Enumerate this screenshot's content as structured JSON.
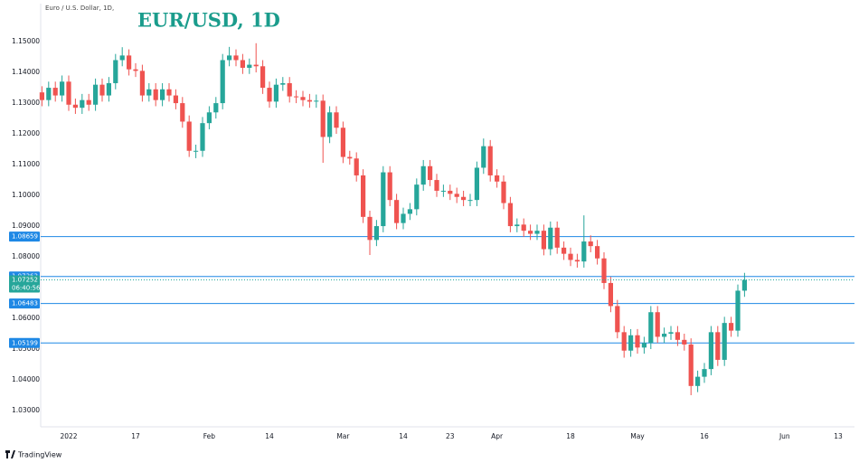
{
  "chart_data": {
    "type": "candlestick",
    "title": "EUR/USD, 1D",
    "subtitle": "Euro / U.S. Dollar, 1D,",
    "brand": "TradingView",
    "up_color": "#26a69a",
    "down_color": "#ef5350",
    "hline_color": "#1e88e5",
    "grid": false,
    "ylim": [
      1.0253,
      1.1612
    ],
    "yticks": [
      {
        "value": 1.15,
        "label": "1.15000"
      },
      {
        "value": 1.14,
        "label": "1.14000"
      },
      {
        "value": 1.13,
        "label": "1.13000"
      },
      {
        "value": 1.12,
        "label": "1.12000"
      },
      {
        "value": 1.11,
        "label": "1.11000"
      },
      {
        "value": 1.1,
        "label": "1.10000"
      },
      {
        "value": 1.09,
        "label": "1.09000"
      },
      {
        "value": 1.08,
        "label": "1.08000"
      },
      {
        "value": 1.06,
        "label": "1.06000"
      },
      {
        "value": 1.05,
        "label": "1.05000"
      },
      {
        "value": 1.04,
        "label": "1.04000"
      },
      {
        "value": 1.03,
        "label": "1.03000"
      }
    ],
    "hlines": [
      1.08659,
      1.07363,
      1.06483,
      1.05199
    ],
    "last_price": {
      "value": 1.07252,
      "countdown": "06:40:56"
    },
    "categories": [
      null,
      null,
      null,
      null,
      "2022",
      null,
      null,
      null,
      null,
      null,
      null,
      null,
      null,
      null,
      "17",
      null,
      null,
      null,
      null,
      null,
      null,
      null,
      null,
      null,
      null,
      "Feb",
      null,
      null,
      null,
      null,
      null,
      null,
      null,
      null,
      "14",
      null,
      null,
      null,
      null,
      null,
      null,
      null,
      null,
      null,
      null,
      "Mar",
      null,
      null,
      null,
      null,
      null,
      null,
      null,
      null,
      "14",
      null,
      null,
      null,
      null,
      null,
      null,
      "23",
      null,
      null,
      null,
      null,
      null,
      null,
      "Apr",
      null,
      null,
      null,
      null,
      null,
      null,
      null,
      null,
      null,
      null,
      "18",
      null,
      null,
      null,
      null,
      null,
      null,
      null,
      null,
      null,
      "May",
      null,
      null,
      null,
      null,
      null,
      null,
      null,
      null,
      null,
      "16",
      null,
      null,
      null,
      null,
      null,
      null,
      null,
      null,
      null,
      null,
      null,
      "Jun",
      null,
      null,
      null,
      null,
      null,
      null,
      null,
      "13"
    ],
    "open": [
      1.1335,
      1.131,
      1.135,
      1.1325,
      1.137,
      1.1295,
      1.1285,
      1.131,
      1.1295,
      1.136,
      1.1325,
      1.1365,
      1.144,
      1.1455,
      1.141,
      1.1405,
      1.1325,
      1.1345,
      1.131,
      1.1345,
      1.1325,
      1.13,
      1.124,
      1.1145,
      1.1145,
      1.1235,
      1.127,
      1.13,
      1.144,
      1.1455,
      1.144,
      1.1415,
      1.1425,
      1.142,
      1.135,
      1.1305,
      1.136,
      1.1365,
      1.1322,
      1.132,
      1.131,
      1.1305,
      1.1308,
      1.119,
      1.127,
      1.122,
      1.1125,
      1.112,
      1.1065,
      1.093,
      1.0855,
      1.09,
      1.1075,
      1.0985,
      1.091,
      1.094,
      1.0955,
      1.1035,
      1.1095,
      1.105,
      1.1015,
      1.1015,
      1.1005,
      1.0995,
      1.0985,
      1.0985,
      1.109,
      1.116,
      1.1065,
      1.1045,
      1.0975,
      1.09,
      1.0905,
      1.0885,
      1.0875,
      1.0885,
      1.0825,
      1.0895,
      1.083,
      1.081,
      1.079,
      1.0785,
      1.085,
      1.0835,
      1.0795,
      1.0715,
      1.064,
      1.0555,
      1.0495,
      1.0545,
      1.0505,
      1.052,
      1.062,
      1.054,
      1.055,
      1.0555,
      1.053,
      1.0515,
      1.038,
      1.041,
      1.0435,
      1.0555,
      1.0465,
      1.0585,
      1.056,
      1.069,
      null,
      null,
      null,
      null,
      null,
      null,
      null,
      null,
      null,
      null,
      null,
      null,
      null,
      null
    ],
    "high": [
      1.1355,
      1.137,
      1.137,
      1.139,
      1.139,
      1.1315,
      1.133,
      1.133,
      1.138,
      1.138,
      1.1385,
      1.146,
      1.1482,
      1.1475,
      1.143,
      1.1425,
      1.1365,
      1.1365,
      1.1365,
      1.1365,
      1.1345,
      1.132,
      1.126,
      1.1165,
      1.1255,
      1.129,
      1.132,
      1.146,
      1.1483,
      1.1475,
      1.146,
      1.1445,
      1.1495,
      1.144,
      1.137,
      1.138,
      1.1385,
      1.1385,
      1.1342,
      1.134,
      1.133,
      1.1328,
      1.1328,
      1.129,
      1.129,
      1.124,
      1.1145,
      1.114,
      1.1085,
      1.095,
      1.092,
      1.1095,
      1.1095,
      1.1005,
      1.096,
      1.0975,
      1.1055,
      1.1115,
      1.1115,
      1.107,
      1.1035,
      1.1035,
      1.1025,
      1.1015,
      1.1005,
      1.111,
      1.1185,
      1.118,
      1.1085,
      1.1065,
      1.0995,
      1.0925,
      1.0925,
      1.0905,
      1.0905,
      1.0905,
      1.0915,
      1.0915,
      1.085,
      1.083,
      1.081,
      1.0935,
      1.087,
      1.0855,
      1.0815,
      1.0735,
      1.066,
      1.0575,
      1.0565,
      1.0565,
      1.054,
      1.064,
      1.064,
      1.057,
      1.0575,
      1.0575,
      1.055,
      1.0535,
      1.043,
      1.0455,
      1.0575,
      1.0575,
      1.0605,
      1.0605,
      1.071,
      1.0748,
      null,
      null,
      null,
      null,
      null,
      null,
      null,
      null,
      null,
      null,
      null,
      null,
      null,
      null
    ],
    "low": [
      1.129,
      1.129,
      1.1305,
      1.1305,
      1.1275,
      1.1265,
      1.1265,
      1.1275,
      1.1275,
      1.1305,
      1.1305,
      1.1345,
      1.142,
      1.139,
      1.1385,
      1.1305,
      1.1305,
      1.129,
      1.129,
      1.1305,
      1.128,
      1.122,
      1.1125,
      1.1121,
      1.1125,
      1.1215,
      1.125,
      1.128,
      1.142,
      1.142,
      1.1395,
      1.1395,
      1.14,
      1.133,
      1.1285,
      1.1285,
      1.134,
      1.1302,
      1.13,
      1.129,
      1.1285,
      1.1285,
      1.1106,
      1.117,
      1.12,
      1.1105,
      1.11,
      1.1045,
      1.091,
      1.0806,
      1.0835,
      1.088,
      1.0965,
      1.089,
      1.089,
      1.092,
      1.0935,
      1.1015,
      1.103,
      1.0995,
      1.0995,
      1.0985,
      1.0975,
      1.0965,
      1.0965,
      1.0965,
      1.107,
      1.1045,
      1.1025,
      1.0955,
      1.088,
      1.088,
      1.0865,
      1.0855,
      1.0855,
      1.0805,
      1.0805,
      1.081,
      1.079,
      1.077,
      1.0765,
      1.0765,
      1.0815,
      1.0775,
      1.0695,
      1.062,
      1.0535,
      1.0472,
      1.0475,
      1.0485,
      1.0485,
      1.05,
      1.052,
      1.052,
      1.053,
      1.051,
      1.0495,
      1.035,
      1.036,
      1.039,
      1.0415,
      1.0445,
      1.0445,
      1.054,
      1.054,
      1.067,
      null,
      null,
      null,
      null,
      null,
      null,
      null,
      null,
      null,
      null,
      null,
      null,
      null,
      null
    ],
    "close": [
      1.131,
      1.135,
      1.1325,
      1.137,
      1.1295,
      1.1285,
      1.131,
      1.1295,
      1.136,
      1.1325,
      1.1365,
      1.144,
      1.1455,
      1.141,
      1.1405,
      1.1325,
      1.1345,
      1.131,
      1.1345,
      1.1325,
      1.13,
      1.124,
      1.1145,
      1.1145,
      1.1235,
      1.127,
      1.13,
      1.144,
      1.1455,
      1.144,
      1.1415,
      1.1425,
      1.142,
      1.135,
      1.1305,
      1.136,
      1.1365,
      1.1322,
      1.132,
      1.131,
      1.1305,
      1.1308,
      1.119,
      1.127,
      1.122,
      1.1125,
      1.112,
      1.1065,
      1.093,
      1.0855,
      1.09,
      1.1075,
      1.0985,
      1.091,
      1.094,
      1.0955,
      1.1035,
      1.1095,
      1.105,
      1.1015,
      1.1015,
      1.1005,
      1.0995,
      1.0985,
      1.0985,
      1.109,
      1.116,
      1.1065,
      1.1045,
      1.0975,
      1.09,
      1.0905,
      1.0885,
      1.0875,
      1.0885,
      1.0825,
      1.0895,
      1.083,
      1.081,
      1.079,
      1.0785,
      1.085,
      1.0835,
      1.0795,
      1.0715,
      1.064,
      1.0555,
      1.0495,
      1.0545,
      1.0505,
      1.052,
      1.062,
      1.054,
      1.055,
      1.0555,
      1.053,
      1.0515,
      1.038,
      1.041,
      1.0435,
      1.0555,
      1.0465,
      1.0585,
      1.056,
      1.069,
      1.0725,
      null,
      null,
      null,
      null,
      null,
      null,
      null,
      null,
      null,
      null,
      null,
      null,
      null,
      null
    ]
  }
}
